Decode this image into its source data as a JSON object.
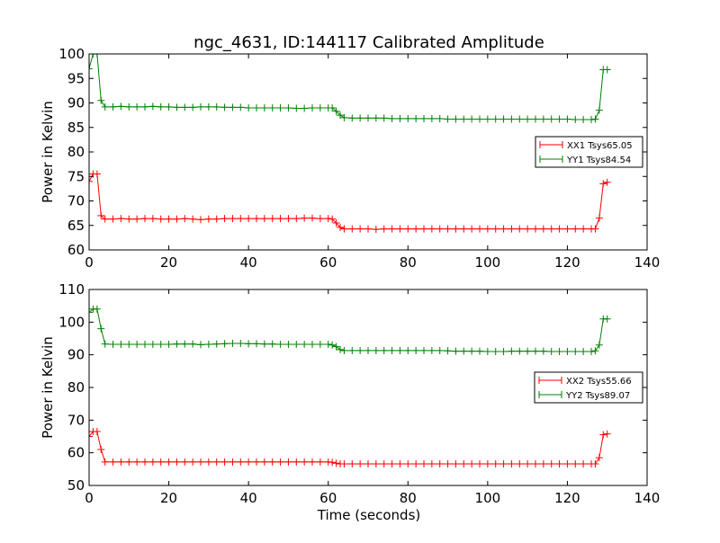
{
  "chart_data": [
    {
      "type": "line",
      "title": "ngc_4631, ID:144117 Calibrated Amplitude",
      "xlabel": "",
      "ylabel": "Power in Kelvin",
      "xlim": [
        0,
        140
      ],
      "ylim": [
        60,
        100
      ],
      "xticks": [
        0,
        20,
        40,
        60,
        80,
        100,
        120,
        140
      ],
      "yticks": [
        60,
        65,
        70,
        75,
        80,
        85,
        90,
        95,
        100
      ],
      "legend_position": "right",
      "x": [
        0,
        1,
        2,
        3,
        4,
        6,
        8,
        10,
        12,
        14,
        16,
        18,
        20,
        22,
        24,
        26,
        28,
        30,
        32,
        34,
        36,
        38,
        40,
        42,
        44,
        46,
        48,
        50,
        52,
        54,
        56,
        58,
        60,
        61,
        62,
        63,
        64,
        66,
        68,
        70,
        72,
        74,
        76,
        78,
        80,
        82,
        84,
        86,
        88,
        90,
        92,
        94,
        96,
        98,
        100,
        102,
        104,
        106,
        108,
        110,
        112,
        114,
        116,
        118,
        120,
        122,
        124,
        126,
        127,
        128,
        129,
        130
      ],
      "series": [
        {
          "name": "XX1 Tsys65.05",
          "color": "#ff0000",
          "values": [
            74,
            75.5,
            75.5,
            67,
            66.3,
            66.3,
            66.4,
            66.3,
            66.3,
            66.4,
            66.4,
            66.3,
            66.3,
            66.3,
            66.4,
            66.3,
            66.2,
            66.3,
            66.3,
            66.4,
            66.4,
            66.4,
            66.4,
            66.4,
            66.4,
            66.4,
            66.4,
            66.4,
            66.4,
            66.5,
            66.5,
            66.4,
            66.4,
            66.3,
            65.5,
            64.6,
            64.3,
            64.3,
            64.3,
            64.3,
            64.2,
            64.3,
            64.3,
            64.3,
            64.3,
            64.3,
            64.3,
            64.3,
            64.3,
            64.3,
            64.3,
            64.3,
            64.3,
            64.3,
            64.3,
            64.3,
            64.3,
            64.3,
            64.3,
            64.3,
            64.3,
            64.3,
            64.3,
            64.3,
            64.3,
            64.3,
            64.3,
            64.3,
            64.3,
            66.5,
            73.5,
            73.8
          ]
        },
        {
          "name": "YY1 Tsys84.54",
          "color": "#008000",
          "values": [
            97,
            100,
            100,
            90.5,
            89.2,
            89.2,
            89.3,
            89.2,
            89.2,
            89.2,
            89.3,
            89.2,
            89.2,
            89.1,
            89.1,
            89.1,
            89.2,
            89.2,
            89.2,
            89.1,
            89.1,
            89.1,
            89.0,
            89.0,
            89.0,
            89.0,
            89.0,
            89.0,
            88.9,
            88.9,
            89.0,
            89.0,
            89.0,
            89.0,
            88.3,
            87.5,
            87.0,
            86.9,
            86.9,
            86.9,
            86.9,
            86.9,
            86.8,
            86.8,
            86.8,
            86.8,
            86.8,
            86.8,
            86.8,
            86.7,
            86.7,
            86.7,
            86.7,
            86.7,
            86.7,
            86.7,
            86.7,
            86.7,
            86.7,
            86.7,
            86.7,
            86.7,
            86.7,
            86.7,
            86.7,
            86.6,
            86.6,
            86.6,
            86.7,
            88.5,
            96.8,
            96.8
          ]
        }
      ]
    },
    {
      "type": "line",
      "title": "",
      "xlabel": "Time (seconds)",
      "ylabel": "Power in Kelvin",
      "xlim": [
        0,
        140
      ],
      "ylim": [
        50,
        110
      ],
      "xticks": [
        0,
        20,
        40,
        60,
        80,
        100,
        120,
        140
      ],
      "yticks": [
        50,
        60,
        70,
        80,
        90,
        100,
        110
      ],
      "legend_position": "right",
      "x": [
        0,
        1,
        2,
        3,
        4,
        6,
        8,
        10,
        12,
        14,
        16,
        18,
        20,
        22,
        24,
        26,
        28,
        30,
        32,
        34,
        36,
        38,
        40,
        42,
        44,
        46,
        48,
        50,
        52,
        54,
        56,
        58,
        60,
        61,
        62,
        63,
        64,
        66,
        68,
        70,
        72,
        74,
        76,
        78,
        80,
        82,
        84,
        86,
        88,
        90,
        92,
        94,
        96,
        98,
        100,
        102,
        104,
        106,
        108,
        110,
        112,
        114,
        116,
        118,
        120,
        122,
        124,
        126,
        127,
        128,
        129,
        130
      ],
      "series": [
        {
          "name": "XX2 Tsys55.66",
          "color": "#ff0000",
          "values": [
            65,
            66.5,
            66.5,
            61,
            57.2,
            57.2,
            57.2,
            57.2,
            57.2,
            57.2,
            57.2,
            57.2,
            57.2,
            57.2,
            57.2,
            57.2,
            57.2,
            57.2,
            57.2,
            57.2,
            57.2,
            57.2,
            57.2,
            57.2,
            57.2,
            57.2,
            57.2,
            57.2,
            57.2,
            57.2,
            57.2,
            57.2,
            57.2,
            57.1,
            56.8,
            56.6,
            56.6,
            56.6,
            56.6,
            56.6,
            56.6,
            56.6,
            56.6,
            56.6,
            56.6,
            56.6,
            56.6,
            56.6,
            56.6,
            56.6,
            56.6,
            56.6,
            56.6,
            56.6,
            56.6,
            56.6,
            56.6,
            56.6,
            56.6,
            56.6,
            56.6,
            56.6,
            56.6,
            56.6,
            56.6,
            56.6,
            56.6,
            56.6,
            56.6,
            58.5,
            65.5,
            65.8
          ]
        },
        {
          "name": "YY2 Tsys89.07",
          "color": "#008000",
          "values": [
            103,
            104,
            104,
            98,
            93.3,
            93.2,
            93.2,
            93.2,
            93.2,
            93.2,
            93.2,
            93.2,
            93.2,
            93.3,
            93.3,
            93.3,
            93.1,
            93.2,
            93.3,
            93.4,
            93.5,
            93.5,
            93.4,
            93.4,
            93.3,
            93.3,
            93.2,
            93.2,
            93.2,
            93.2,
            93.2,
            93.2,
            93.2,
            93.0,
            92.5,
            91.6,
            91.3,
            91.3,
            91.3,
            91.3,
            91.3,
            91.3,
            91.3,
            91.3,
            91.3,
            91.3,
            91.3,
            91.3,
            91.3,
            91.2,
            91.1,
            91.1,
            91.1,
            91.1,
            91.0,
            91.0,
            91.0,
            91.1,
            91.1,
            91.1,
            91.1,
            91.1,
            91.0,
            91.0,
            91.0,
            91.0,
            91.0,
            91.0,
            91.2,
            93,
            101,
            101
          ]
        }
      ]
    }
  ]
}
